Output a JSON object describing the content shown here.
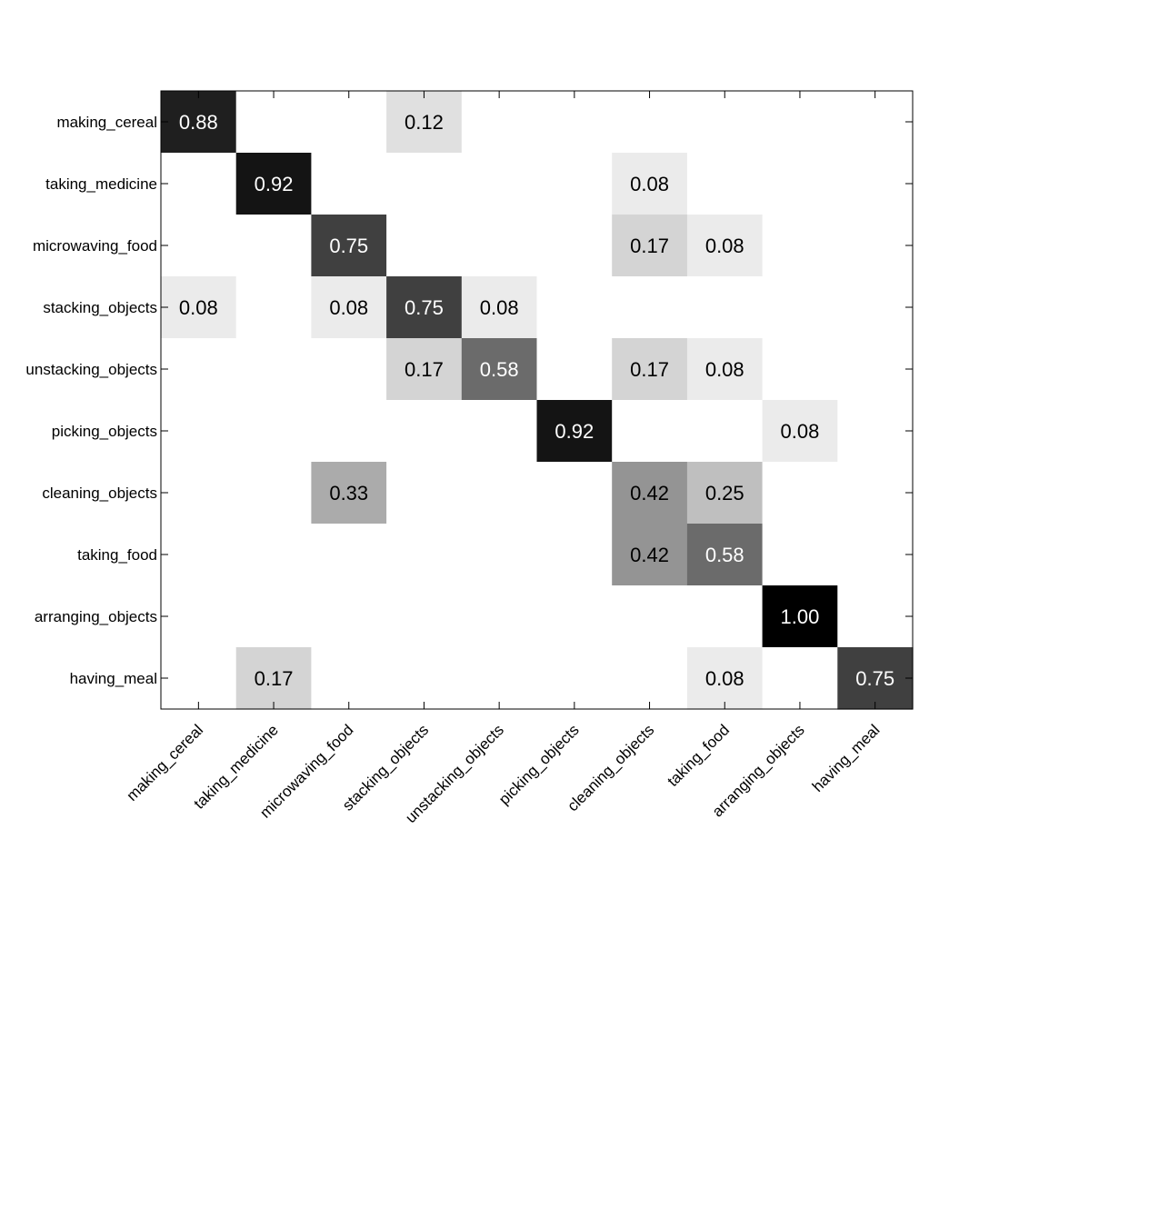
{
  "chart_data": {
    "type": "heatmap",
    "title": "",
    "xlabel": "",
    "ylabel": "",
    "row_labels": [
      "making_cereal",
      "taking_medicine",
      "microwaving_food",
      "stacking_objects",
      "unstacking_objects",
      "picking_objects",
      "cleaning_objects",
      "taking_food",
      "arranging_objects",
      "having_meal"
    ],
    "col_labels": [
      "making_cereal",
      "taking_medicine",
      "microwaving_food",
      "stacking_objects",
      "unstacking_objects",
      "picking_objects",
      "cleaning_objects",
      "taking_food",
      "arranging_objects",
      "having_meal"
    ],
    "values": [
      [
        0.88,
        0,
        0,
        0.12,
        0,
        0,
        0,
        0,
        0,
        0
      ],
      [
        0,
        0.92,
        0,
        0,
        0,
        0,
        0.08,
        0,
        0,
        0
      ],
      [
        0,
        0,
        0.75,
        0,
        0,
        0,
        0.17,
        0.08,
        0,
        0
      ],
      [
        0.08,
        0,
        0.08,
        0.75,
        0.08,
        0,
        0,
        0,
        0,
        0
      ],
      [
        0,
        0,
        0,
        0.17,
        0.58,
        0,
        0.17,
        0.08,
        0,
        0
      ],
      [
        0,
        0,
        0,
        0,
        0,
        0.92,
        0,
        0,
        0.08,
        0
      ],
      [
        0,
        0,
        0.33,
        0,
        0,
        0,
        0.42,
        0.25,
        0,
        0
      ],
      [
        0,
        0,
        0,
        0,
        0,
        0,
        0.42,
        0.58,
        0,
        0
      ],
      [
        0,
        0,
        0,
        0,
        0,
        0,
        0,
        0,
        1.0,
        0
      ],
      [
        0,
        0.17,
        0,
        0,
        0,
        0,
        0,
        0.08,
        0,
        0.75
      ]
    ],
    "value_range": [
      0,
      1
    ],
    "colormap": "white-to-black",
    "grid": false,
    "legend": "none",
    "cell_label_format": "2 decimals, zero cells unlabeled"
  }
}
